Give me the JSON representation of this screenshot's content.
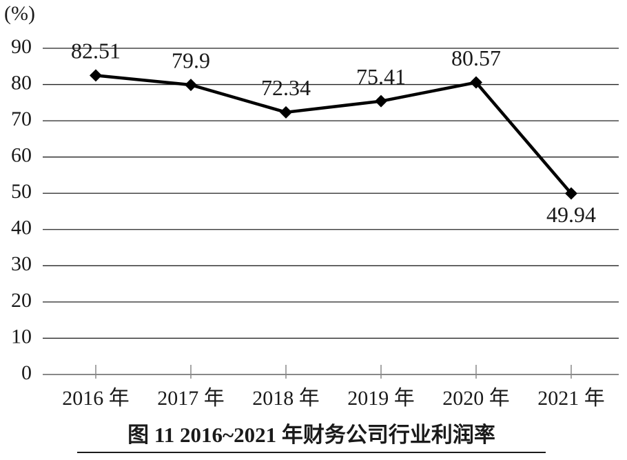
{
  "chart_data": {
    "type": "line",
    "title": "图 11  2016~2021 年财务公司行业利润率",
    "y_label": "(%)",
    "categories": [
      "2016 年",
      "2017 年",
      "2018 年",
      "2019 年",
      "2020 年",
      "2021 年"
    ],
    "values": [
      82.51,
      79.9,
      72.34,
      75.41,
      80.57,
      49.94
    ],
    "color": "#000000",
    "ylim": [
      0,
      90
    ],
    "yticks": [
      0,
      10,
      20,
      30,
      40,
      50,
      60,
      70,
      80,
      90
    ],
    "grid": true
  }
}
